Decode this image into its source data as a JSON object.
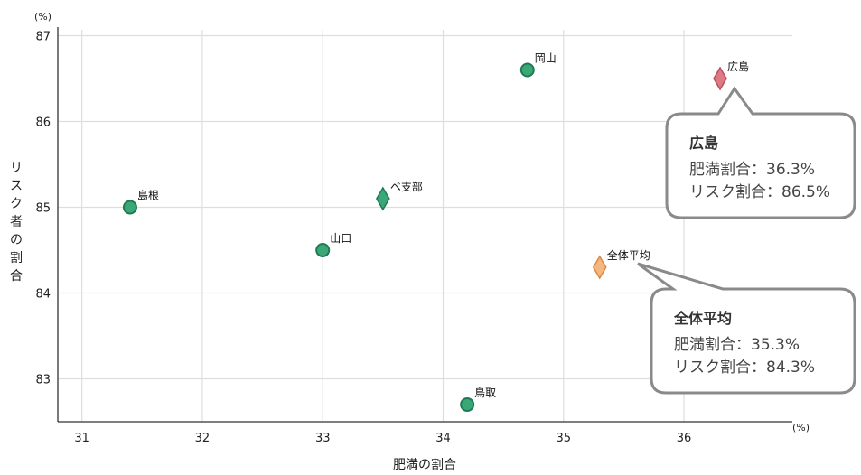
{
  "chart_data": {
    "type": "scatter",
    "xlabel": "肥満の割合",
    "ylabel": "リスク者の割合",
    "x_unit": "(%)",
    "y_unit": "(%)",
    "xlim": [
      30.8,
      36.9
    ],
    "ylim": [
      82.5,
      87.1
    ],
    "x_ticks": [
      31,
      32,
      33,
      34,
      35,
      36
    ],
    "y_ticks": [
      83,
      84,
      85,
      86,
      87
    ],
    "grid": true,
    "points": [
      {
        "label": "島根",
        "x": 31.4,
        "y": 85.0,
        "shape": "circle",
        "color": "#3aa876"
      },
      {
        "label": "ベ支部",
        "x": 33.5,
        "y": 85.1,
        "shape": "diamond",
        "color": "#3aa876"
      },
      {
        "label": "山口",
        "x": 33.0,
        "y": 84.5,
        "shape": "circle",
        "color": "#3aa876"
      },
      {
        "label": "岡山",
        "x": 34.7,
        "y": 86.6,
        "shape": "circle",
        "color": "#3aa876"
      },
      {
        "label": "鳥取",
        "x": 34.2,
        "y": 82.7,
        "shape": "circle",
        "color": "#3aa876"
      },
      {
        "label": "広島",
        "x": 36.3,
        "y": 86.5,
        "shape": "diamond",
        "color": "#dc7a86"
      },
      {
        "label": "全体平均",
        "x": 35.3,
        "y": 84.3,
        "shape": "diamond",
        "color": "#f6b67f"
      }
    ],
    "callouts": [
      {
        "title": "広島",
        "line1": "肥満割合：36.3%",
        "line2": "リスク割合：86.5%"
      },
      {
        "title": "全体平均",
        "line1": "肥満割合：35.3%",
        "line2": "リスク割合：84.3%"
      }
    ]
  }
}
